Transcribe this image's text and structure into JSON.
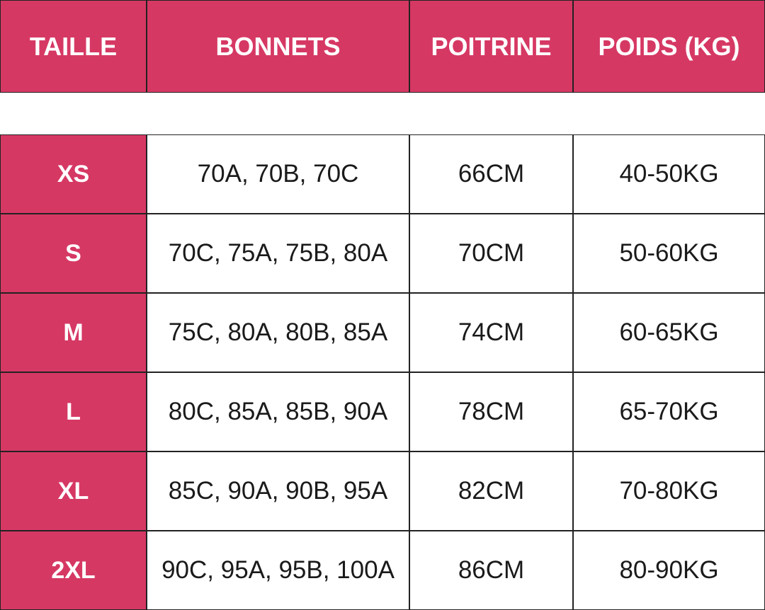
{
  "header": {
    "columns": [
      "TAILLE",
      "BONNETS",
      "POITRINE",
      "POIDS (KG)"
    ]
  },
  "table": {
    "rows": [
      [
        "XS",
        "70A, 70B, 70C",
        "66CM",
        "40-50KG"
      ],
      [
        "S",
        "70C, 75A, 75B, 80A",
        "70CM",
        "50-60KG"
      ],
      [
        "M",
        "75C, 80A, 80B, 85A",
        "74CM",
        "60-65KG"
      ],
      [
        "L",
        "80C, 85A, 85B, 90A",
        "78CM",
        "65-70KG"
      ],
      [
        "XL",
        "85C, 90A, 90B, 95A",
        "82CM",
        "70-80KG"
      ],
      [
        "2XL",
        "90C, 95A, 95B, 100A",
        "86CM",
        "80-90KG"
      ]
    ]
  }
}
